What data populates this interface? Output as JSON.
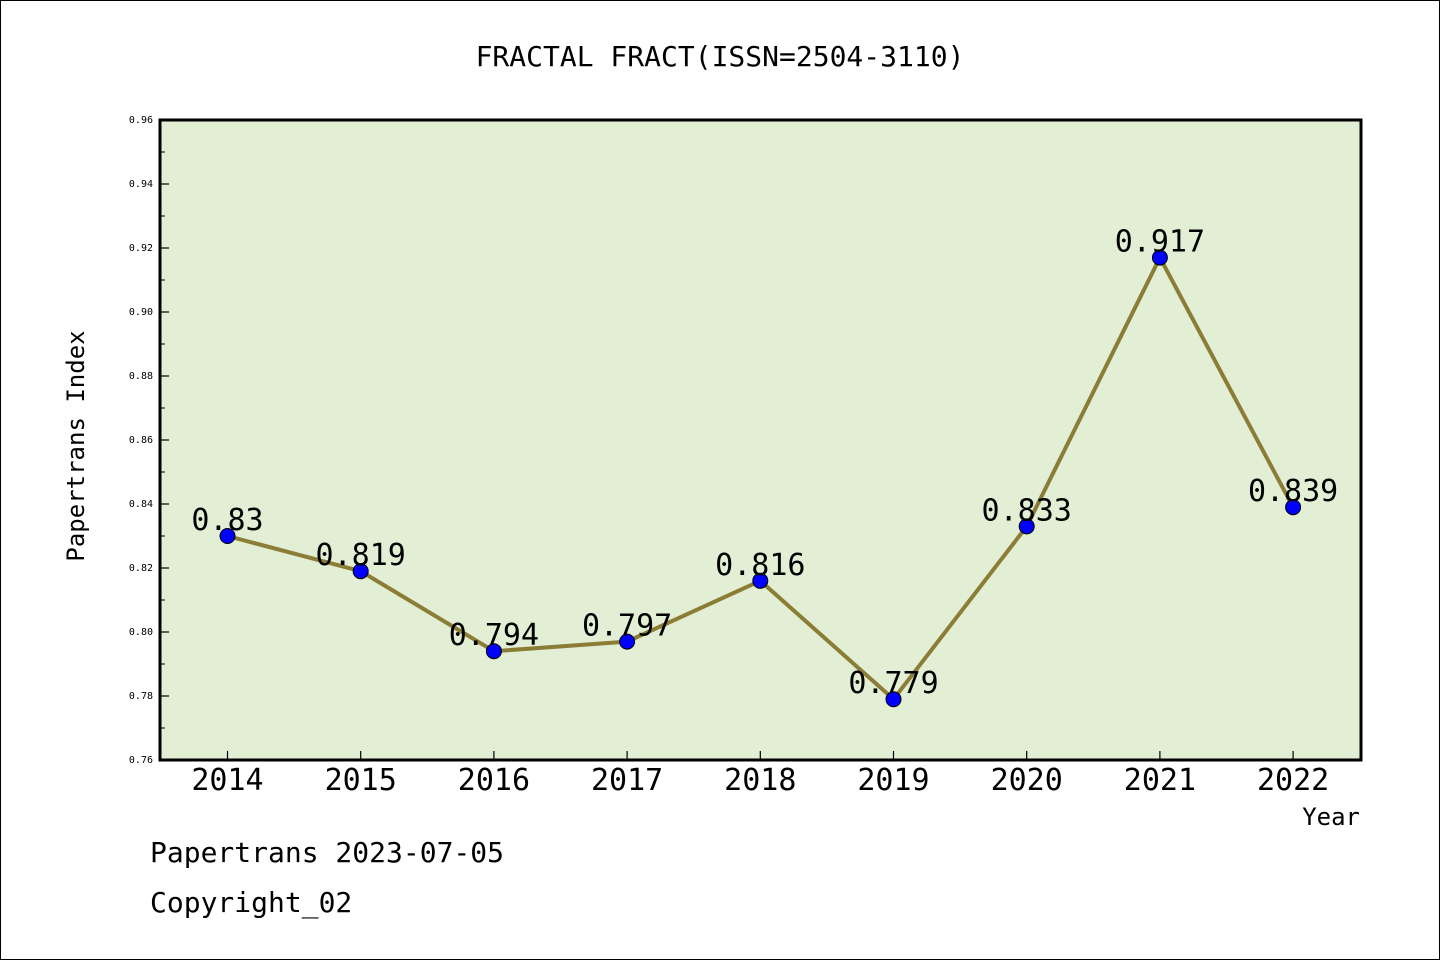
{
  "chart_data": {
    "type": "line",
    "title": "FRACTAL FRACT(ISSN=2504-3110)",
    "xlabel": "Year",
    "ylabel": "Papertrans Index",
    "categories": [
      "2014",
      "2015",
      "2016",
      "2017",
      "2018",
      "2019",
      "2020",
      "2021",
      "2022"
    ],
    "series": [
      {
        "values": [
          0.83,
          0.819,
          0.794,
          0.797,
          0.816,
          0.779,
          0.833,
          0.917,
          0.839
        ]
      }
    ],
    "data_labels": [
      "0.83",
      "0.819",
      "0.794",
      "0.797",
      "0.816",
      "0.779",
      "0.833",
      "0.917",
      "0.839"
    ],
    "ylim": [
      0.76,
      0.96
    ],
    "yticks": [
      "0.76",
      "0.78",
      "0.80",
      "0.82",
      "0.84",
      "0.86",
      "0.88",
      "0.90",
      "0.92",
      "0.94",
      "0.96"
    ],
    "grid": false,
    "colors": {
      "plot_background": "#e2efd5",
      "line": "#8b7d35",
      "marker": "#0000ff"
    }
  },
  "footer": {
    "line1": "Papertrans 2023-07-05",
    "line2": "Copyright_02"
  }
}
